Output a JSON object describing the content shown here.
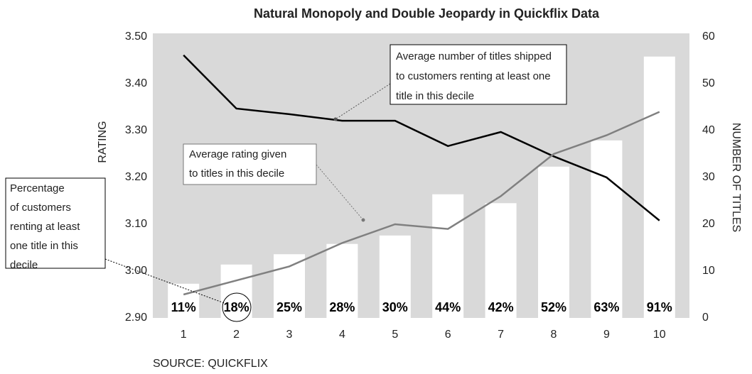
{
  "chart_data": {
    "type": "bar_line",
    "title": "Natural Monopoly and Double Jeopardy in Quickflix Data",
    "ylabel": "RATING",
    "y2label": "NUMBER OF TITLES",
    "source": "SOURCE: QUICKFLIX",
    "categories": [
      "1",
      "2",
      "3",
      "4",
      "5",
      "6",
      "7",
      "8",
      "9",
      "10"
    ],
    "series": [
      {
        "kind": "bar",
        "axis": "y2",
        "color": "#ffffff",
        "values": [
          7.3,
          11.4,
          13.6,
          15.8,
          17.6,
          26.4,
          24.5,
          32.3,
          37.9,
          55.8
        ]
      },
      {
        "kind": "line",
        "axis": "y2",
        "color": "#000000",
        "values": [
          56.1,
          44.7,
          43.5,
          42.1,
          42.1,
          36.7,
          39.7,
          34.5,
          30,
          20.8
        ]
      },
      {
        "kind": "line",
        "axis": "y",
        "color": "#808080",
        "values": [
          2.95,
          2.98,
          3.01,
          3.06,
          3.1,
          3.09,
          3.16,
          3.25,
          3.29,
          3.34
        ]
      }
    ],
    "percentages": [
      11,
      18,
      25,
      28,
      30,
      44,
      42,
      52,
      63,
      91
    ],
    "percentage_labels": [
      "11%",
      "18%",
      "25%",
      "28%",
      "30%",
      "44%",
      "42%",
      "52%",
      "63%",
      "91%"
    ],
    "ylim": [
      2.9,
      3.5
    ],
    "yticks": [
      {
        "value": 2.9,
        "label": "2.90"
      },
      {
        "value": 3.0,
        "label": "3.00"
      },
      {
        "value": 3.1,
        "label": "3.10"
      },
      {
        "value": 3.2,
        "label": "3.20"
      },
      {
        "value": 3.3,
        "label": "3.30"
      },
      {
        "value": 3.4,
        "label": "3.40"
      },
      {
        "value": 3.5,
        "label": "3.50"
      }
    ],
    "y2lim": [
      0,
      60
    ],
    "y2ticks": [
      0,
      10,
      20,
      30,
      40,
      50,
      60
    ],
    "annotations": [
      {
        "lines": [
          "Average number of titles shipped",
          "to customers renting at least one",
          "title in this decile"
        ]
      },
      {
        "lines": [
          "Average rating given",
          "to titles in this decile"
        ]
      },
      {
        "lines": [
          "Percentage",
          "of customers",
          "renting at least",
          "one title in this",
          "decile"
        ]
      }
    ]
  }
}
